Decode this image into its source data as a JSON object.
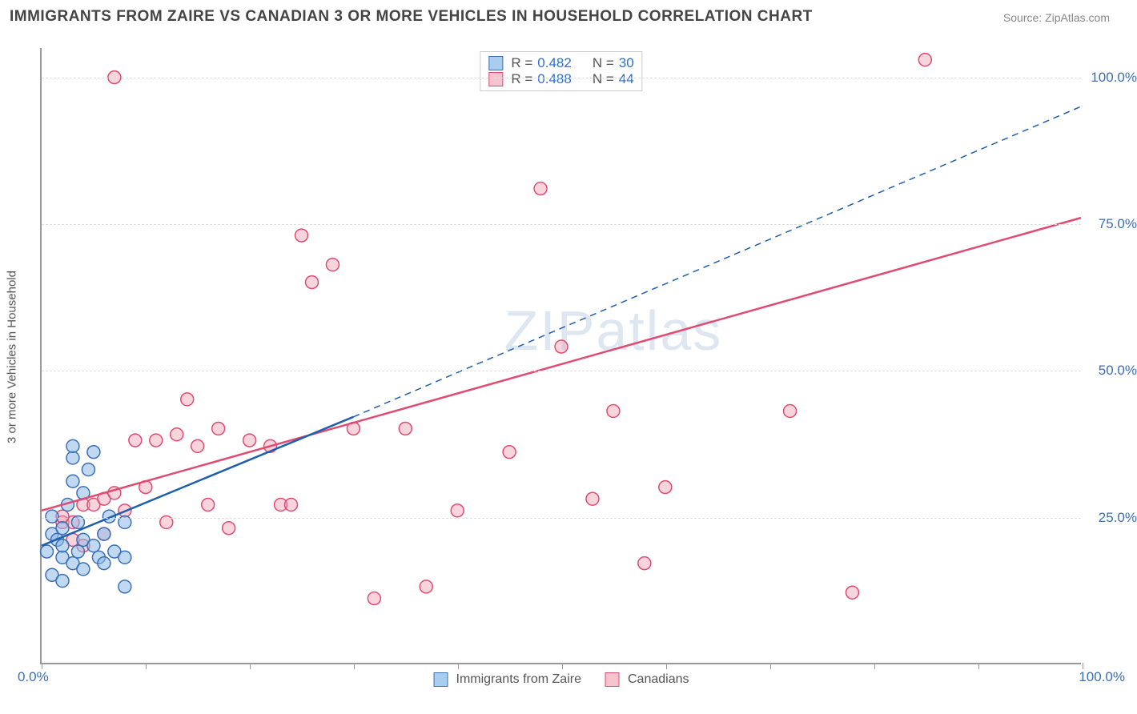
{
  "title": "IMMIGRANTS FROM ZAIRE VS CANADIAN 3 OR MORE VEHICLES IN HOUSEHOLD CORRELATION CHART",
  "source": "Source: ZipAtlas.com",
  "watermark": "ZIPatlas",
  "y_axis_title": "3 or more Vehicles in Household",
  "axis_label_color": "#3b6fb6",
  "tick_font_size": 17,
  "x_axis": {
    "min_label": "0.0%",
    "max_label": "100.0%",
    "ticks_pct": [
      0,
      10,
      20,
      30,
      40,
      50,
      60,
      70,
      80,
      90,
      100
    ]
  },
  "y_axis": {
    "gridlines": [
      {
        "pct": 25,
        "label": "25.0%"
      },
      {
        "pct": 50,
        "label": "50.0%"
      },
      {
        "pct": 75,
        "label": "75.0%"
      },
      {
        "pct": 100,
        "label": "100.0%"
      }
    ]
  },
  "legend_top": {
    "rows": [
      {
        "swatch_fill": "#a9cdee",
        "swatch_stroke": "#3b6fb6",
        "r_label": "R = ",
        "r_value": "0.482",
        "n_label": "N = ",
        "n_value": "30",
        "value_color": "#2f6fd0"
      },
      {
        "swatch_fill": "#f6c3ce",
        "swatch_stroke": "#e04b72",
        "r_label": "R = ",
        "r_value": "0.488",
        "n_label": "N = ",
        "n_value": "44",
        "value_color": "#2f6fd0"
      }
    ]
  },
  "legend_bottom": {
    "items": [
      {
        "swatch_fill": "#a9cdee",
        "swatch_stroke": "#3b6fb6",
        "label": "Immigrants from Zaire"
      },
      {
        "swatch_fill": "#f6c3ce",
        "swatch_stroke": "#e04b72",
        "label": "Canadians"
      }
    ]
  },
  "series": {
    "blue": {
      "marker_fill": "rgba(140,185,230,0.55)",
      "marker_stroke": "#3b6fb6",
      "marker_radius": 8,
      "line_color": "#1f5fab",
      "line_width": 2.5,
      "trend_solid": {
        "x1": 0,
        "y1": 20,
        "x2": 30,
        "y2": 42
      },
      "trend_dashed": {
        "x1": 30,
        "y1": 42,
        "x2": 100,
        "y2": 95
      },
      "points": [
        [
          0.5,
          19
        ],
        [
          1,
          22
        ],
        [
          1,
          25
        ],
        [
          1.5,
          21
        ],
        [
          2,
          18
        ],
        [
          2,
          20
        ],
        [
          2,
          23
        ],
        [
          2.5,
          27
        ],
        [
          3,
          31
        ],
        [
          3,
          35
        ],
        [
          3,
          17
        ],
        [
          3.5,
          19
        ],
        [
          3.5,
          24
        ],
        [
          4,
          21
        ],
        [
          4,
          16
        ],
        [
          4.5,
          33
        ],
        [
          5,
          36
        ],
        [
          5,
          20
        ],
        [
          5.5,
          18
        ],
        [
          6,
          17
        ],
        [
          6,
          22
        ],
        [
          6.5,
          25
        ],
        [
          7,
          19
        ],
        [
          8,
          18
        ],
        [
          8,
          24
        ],
        [
          8,
          13
        ],
        [
          3,
          37
        ],
        [
          4,
          29
        ],
        [
          1,
          15
        ],
        [
          2,
          14
        ]
      ]
    },
    "pink": {
      "marker_fill": "rgba(240,160,180,0.45)",
      "marker_stroke": "#e04b72",
      "marker_radius": 8,
      "line_color": "#e04b72",
      "line_width": 2.5,
      "trend_solid": {
        "x1": 0,
        "y1": 26,
        "x2": 100,
        "y2": 76
      },
      "points": [
        [
          2,
          24
        ],
        [
          3,
          24
        ],
        [
          4,
          27
        ],
        [
          5,
          27
        ],
        [
          6,
          28
        ],
        [
          7,
          29
        ],
        [
          8,
          26
        ],
        [
          9,
          38
        ],
        [
          10,
          30
        ],
        [
          11,
          38
        ],
        [
          12,
          24
        ],
        [
          13,
          39
        ],
        [
          14,
          45
        ],
        [
          15,
          37
        ],
        [
          16,
          27
        ],
        [
          18,
          23
        ],
        [
          20,
          38
        ],
        [
          22,
          37
        ],
        [
          23,
          27
        ],
        [
          24,
          27
        ],
        [
          25,
          73
        ],
        [
          26,
          65
        ],
        [
          28,
          68
        ],
        [
          30,
          40
        ],
        [
          32,
          11
        ],
        [
          35,
          40
        ],
        [
          37,
          13
        ],
        [
          40,
          26
        ],
        [
          45,
          36
        ],
        [
          48,
          81
        ],
        [
          50,
          54
        ],
        [
          55,
          43
        ],
        [
          58,
          17
        ],
        [
          60,
          30
        ],
        [
          72,
          43
        ],
        [
          85,
          103
        ],
        [
          7,
          100
        ],
        [
          17,
          40
        ],
        [
          6,
          22
        ],
        [
          4,
          20
        ],
        [
          3,
          21
        ],
        [
          2,
          25
        ],
        [
          78,
          12
        ],
        [
          53,
          28
        ]
      ]
    }
  }
}
